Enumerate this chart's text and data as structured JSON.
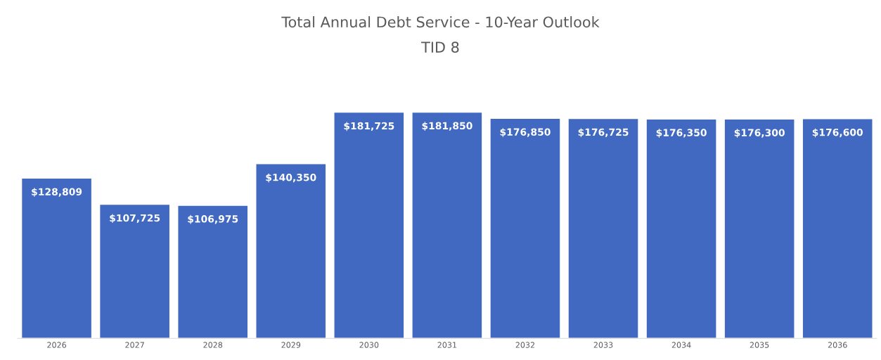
{
  "chart_data": {
    "type": "bar",
    "title": "Total Annual Debt Service - 10-Year Outlook",
    "subtitle": "TID 8",
    "categories": [
      "2026",
      "2027",
      "2028",
      "2029",
      "2030",
      "2031",
      "2032",
      "2033",
      "2034",
      "2035",
      "2036"
    ],
    "values": [
      128809,
      107725,
      106975,
      140350,
      181725,
      181850,
      176850,
      176725,
      176350,
      176300,
      176600
    ],
    "value_labels": [
      "$128,809",
      "$107,725",
      "$106,975",
      "$140,350",
      "$181,725",
      "$181,850",
      "$176,850",
      "$176,725",
      "$176,350",
      "$176,300",
      "$176,600"
    ],
    "color": "#4169c1",
    "tick_labels": "x",
    "grid": false,
    "legend": false
  }
}
